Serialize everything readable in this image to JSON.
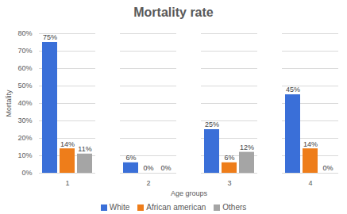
{
  "chart_data": {
    "type": "bar",
    "title": "Mortality rate",
    "x_label": "Age groups",
    "y_label": "Mortality",
    "categories": [
      "1",
      "2",
      "3",
      "4"
    ],
    "series": [
      {
        "name": "White",
        "color": "#3a6fd8",
        "values": [
          75,
          6,
          25,
          45
        ],
        "value_labels": [
          "75%",
          "6%",
          "25%",
          "45%"
        ]
      },
      {
        "name": "African american",
        "color": "#ee7d1a",
        "values": [
          14,
          0,
          6,
          14
        ],
        "value_labels": [
          "14%",
          "0%",
          "6%",
          "14%"
        ]
      },
      {
        "name": "Others",
        "color": "#a5a5a5",
        "values": [
          11,
          0,
          12,
          0
        ],
        "value_labels": [
          "11%",
          "0%",
          "12%",
          "0%"
        ]
      }
    ],
    "ylim": [
      0,
      80
    ],
    "yticks": [
      {
        "value": 0,
        "label": "0%"
      },
      {
        "value": 10,
        "label": "10%"
      },
      {
        "value": 20,
        "label": "20%"
      },
      {
        "value": 30,
        "label": "30%"
      },
      {
        "value": 40,
        "label": "40%"
      },
      {
        "value": 50,
        "label": "50%"
      },
      {
        "value": 60,
        "label": "60%"
      },
      {
        "value": 70,
        "label": "70%"
      },
      {
        "value": 80,
        "label": "80%"
      }
    ],
    "grid": true,
    "data_labels": true,
    "legend": "bottom"
  }
}
